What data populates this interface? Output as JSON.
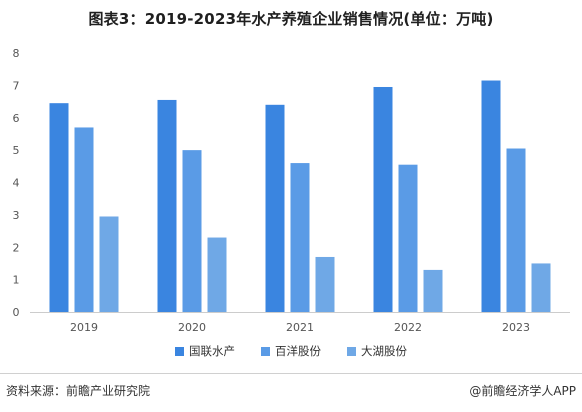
{
  "chart_data": {
    "type": "bar",
    "title": "图表3：2019-2023年水产养殖企业销售情况(单位：万吨)",
    "categories": [
      "2019",
      "2020",
      "2021",
      "2022",
      "2023"
    ],
    "series": [
      {
        "name": "国联水产",
        "color": "#3a85e0",
        "values": [
          6.45,
          6.55,
          6.4,
          6.95,
          7.15
        ]
      },
      {
        "name": "百洋股份",
        "color": "#5a9be6",
        "values": [
          5.7,
          5.0,
          4.6,
          4.55,
          5.05
        ]
      },
      {
        "name": "大湖股份",
        "color": "#6fa8e6",
        "values": [
          2.95,
          2.3,
          1.7,
          1.3,
          1.5
        ]
      }
    ],
    "y_ticks": [
      "0",
      "1",
      "2",
      "3",
      "4",
      "5",
      "6",
      "7",
      "8"
    ],
    "ylim": [
      0,
      8
    ],
    "grid": false,
    "legend_position": "bottom"
  },
  "source_text": "资料来源：前瞻产业研究院",
  "credit_text": "@前瞻经济学人APP",
  "colors": {
    "axis": "#cccccc",
    "tick_text": "#555555"
  }
}
